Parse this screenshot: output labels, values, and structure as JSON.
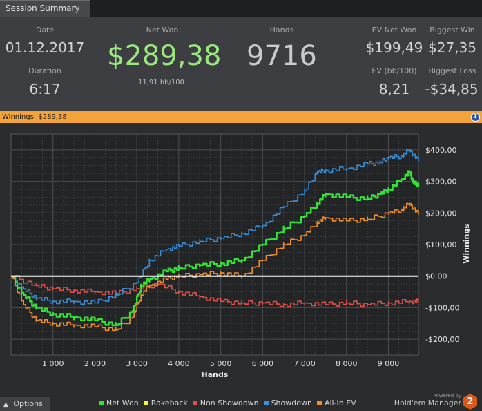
{
  "tab": {
    "label": "Session Summary"
  },
  "summary": {
    "date_label": "Date",
    "date": "01.12.2017",
    "duration_label": "Duration",
    "duration": "6:17",
    "net_won_label": "Net Won",
    "net_won": "$289,38",
    "net_won_sub": "11,91 bb/100",
    "hands_label": "Hands",
    "hands": "9716",
    "ev_net_won_label": "EV Net Won",
    "ev_net_won": "$199,49",
    "ev_bb_label": "EV (bb/100)",
    "ev_bb": "8,21",
    "biggest_win_label": "Biggest Win",
    "biggest_win": "$27,35",
    "biggest_loss_label": "Biggest Loss",
    "biggest_loss": "-$34,85"
  },
  "winnings_bar": {
    "label": "Winnings:",
    "value": "$289,38"
  },
  "help_icon": "?",
  "chart_data": {
    "type": "line",
    "xlabel": "Hands",
    "ylabel": "Winnings",
    "xlim": [
      0,
      9716
    ],
    "ylim": [
      -250,
      450
    ],
    "xticks": [
      1000,
      2000,
      3000,
      4000,
      5000,
      6000,
      7000,
      8000,
      9000
    ],
    "xtick_labels": [
      "1 000",
      "2 000",
      "3 000",
      "4 000",
      "5 000",
      "6 000",
      "7 000",
      "8 000",
      "9 000"
    ],
    "yticks": [
      -200,
      -100,
      0,
      100,
      200,
      300,
      400
    ],
    "ytick_labels": [
      "-$200,00",
      "-$100,00",
      "$0,00",
      "$100,00",
      "$200,00",
      "$300,00",
      "$400,00"
    ],
    "grid": true,
    "zero_line_color": "#ffffff",
    "series": [
      {
        "name": "Net Won",
        "color": "#35e23a",
        "x": [
          0,
          300,
          600,
          1000,
          1500,
          2000,
          2500,
          2900,
          3100,
          3300,
          3700,
          4000,
          4500,
          5000,
          5500,
          6000,
          6500,
          7000,
          7300,
          7500,
          8000,
          8500,
          8800,
          9000,
          9300,
          9500,
          9600,
          9716
        ],
        "y": [
          0,
          -60,
          -100,
          -120,
          -130,
          -140,
          -155,
          -110,
          -30,
          -10,
          15,
          25,
          35,
          40,
          50,
          100,
          150,
          190,
          230,
          260,
          250,
          245,
          260,
          275,
          305,
          330,
          295,
          289
        ]
      },
      {
        "name": "Rakeback",
        "color": "#f7f23a",
        "x": [
          0,
          9716
        ],
        "y": [
          0,
          0
        ]
      },
      {
        "name": "Non Showdown",
        "color": "#e0504a",
        "x": [
          0,
          600,
          1000,
          1500,
          2000,
          2500,
          3000,
          3500,
          4000,
          4500,
          5000,
          5500,
          6000,
          6500,
          7000,
          7500,
          8000,
          8500,
          9000,
          9500,
          9716
        ],
        "y": [
          0,
          -30,
          -40,
          -45,
          -50,
          -55,
          -40,
          -25,
          -50,
          -65,
          -80,
          -85,
          -85,
          -90,
          -85,
          -90,
          -85,
          -90,
          -85,
          -80,
          -80
        ]
      },
      {
        "name": "Showdown",
        "color": "#3a8fd9",
        "x": [
          0,
          300,
          600,
          1000,
          1500,
          2000,
          2500,
          3000,
          3300,
          3700,
          4000,
          4500,
          5000,
          5500,
          6000,
          6500,
          7000,
          7300,
          7500,
          8000,
          8500,
          8800,
          9000,
          9300,
          9500,
          9716
        ],
        "y": [
          0,
          -40,
          -70,
          -80,
          -80,
          -85,
          -60,
          -20,
          50,
          85,
          95,
          110,
          120,
          135,
          160,
          220,
          270,
          330,
          335,
          340,
          355,
          360,
          375,
          380,
          400,
          365
        ]
      },
      {
        "name": "All-In EV",
        "color": "#ef8e2c",
        "x": [
          0,
          300,
          600,
          1000,
          1500,
          2000,
          2500,
          2900,
          3100,
          3300,
          3700,
          4000,
          4500,
          5000,
          5500,
          6000,
          6500,
          7000,
          7300,
          7500,
          8000,
          8500,
          9000,
          9300,
          9500,
          9716
        ],
        "y": [
          0,
          -90,
          -140,
          -150,
          -155,
          -160,
          -170,
          -130,
          -60,
          -30,
          -10,
          0,
          5,
          10,
          0,
          50,
          100,
          130,
          170,
          185,
          175,
          180,
          200,
          210,
          230,
          195
        ]
      }
    ],
    "legend_position": "bottom"
  },
  "footer": {
    "options_label": "Options",
    "options_icon": "chevron-up-icon",
    "legend": [
      {
        "label": "Net Won",
        "color": "#35e23a"
      },
      {
        "label": "Rakeback",
        "color": "#f7f23a"
      },
      {
        "label": "Non Showdown",
        "color": "#e0504a"
      },
      {
        "label": "Showdown",
        "color": "#3a8fd9"
      },
      {
        "label": "All-In EV",
        "color": "#ef8e2c"
      }
    ],
    "powered_by": "Powered by",
    "brand": "Hold'em Manager",
    "brand_logo": "2"
  }
}
